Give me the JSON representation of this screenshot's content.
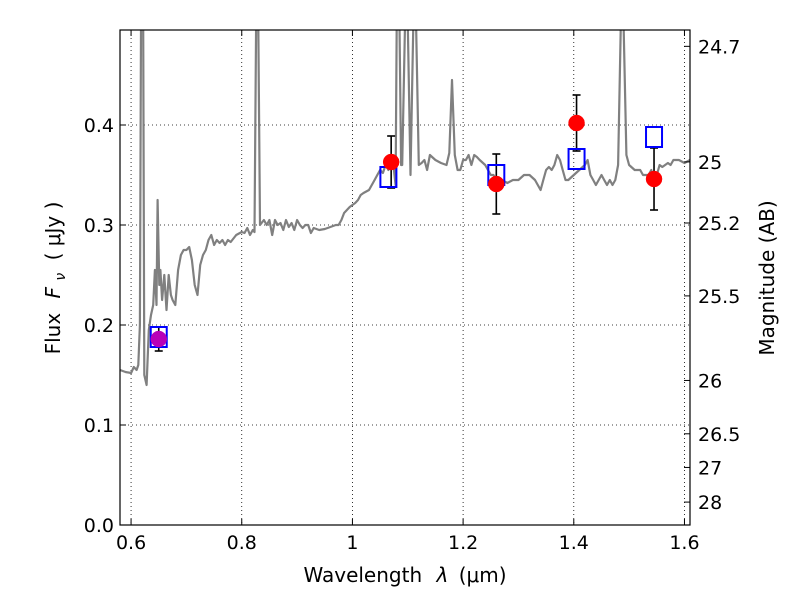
{
  "chart_data": {
    "type": "line",
    "title": "",
    "xlabel": "Wavelength",
    "xlabel_symbol": "λ",
    "xlabel_unit": "(μm)",
    "ylabel": "Flux",
    "ylabel_symbol": "F",
    "ylabel_subscript": "ν",
    "ylabel_unit": "( μJy )",
    "y2label": "Magnitude (AB)",
    "xlim": [
      0.58,
      1.61
    ],
    "ylim": [
      0.0,
      0.495
    ],
    "grid": true,
    "x_ticks": [
      0.6,
      0.8,
      1.0,
      1.2,
      1.4,
      1.6
    ],
    "x_tick_labels": [
      "0.6",
      "0.8",
      "1",
      "1.2",
      "1.4",
      "1.6"
    ],
    "y_ticks": [
      0.0,
      0.1,
      0.2,
      0.3,
      0.4
    ],
    "y_tick_labels": [
      "0.0",
      "0.1",
      "0.2",
      "0.3",
      "0.4"
    ],
    "mag_ticks": [
      24.7,
      25,
      25.2,
      25.5,
      26,
      26.5,
      27,
      28
    ],
    "mag_tick_labels": [
      "24.7",
      "25",
      "25.2",
      "25.5",
      "26",
      "26.5",
      "27",
      "28"
    ],
    "colors": {
      "model_line": "#808080",
      "model_points": "#0000ff",
      "observed_points": "#ff0000",
      "first_observed_point": "#b800b8",
      "error_bars": "#000000",
      "grid": "#000000"
    },
    "series": [
      {
        "kind": "spectrum",
        "points": [
          [
            0.58,
            0.155
          ],
          [
            0.59,
            0.153
          ],
          [
            0.6,
            0.152
          ],
          [
            0.605,
            0.158
          ],
          [
            0.61,
            0.155
          ],
          [
            0.613,
            0.16
          ],
          [
            0.616,
            0.2
          ],
          [
            0.618,
            0.5
          ],
          [
            0.622,
            0.5
          ],
          [
            0.624,
            0.15
          ],
          [
            0.628,
            0.14
          ],
          [
            0.632,
            0.195
          ],
          [
            0.636,
            0.21
          ],
          [
            0.64,
            0.22
          ],
          [
            0.643,
            0.255
          ],
          [
            0.646,
            0.22
          ],
          [
            0.648,
            0.325
          ],
          [
            0.651,
            0.24
          ],
          [
            0.653,
            0.255
          ],
          [
            0.656,
            0.225
          ],
          [
            0.66,
            0.25
          ],
          [
            0.664,
            0.215
          ],
          [
            0.668,
            0.25
          ],
          [
            0.672,
            0.23
          ],
          [
            0.675,
            0.225
          ],
          [
            0.68,
            0.22
          ],
          [
            0.685,
            0.255
          ],
          [
            0.69,
            0.27
          ],
          [
            0.695,
            0.275
          ],
          [
            0.7,
            0.275
          ],
          [
            0.705,
            0.278
          ],
          [
            0.71,
            0.265
          ],
          [
            0.715,
            0.24
          ],
          [
            0.72,
            0.23
          ],
          [
            0.725,
            0.26
          ],
          [
            0.73,
            0.27
          ],
          [
            0.735,
            0.275
          ],
          [
            0.74,
            0.285
          ],
          [
            0.745,
            0.29
          ],
          [
            0.75,
            0.28
          ],
          [
            0.755,
            0.285
          ],
          [
            0.76,
            0.282
          ],
          [
            0.765,
            0.285
          ],
          [
            0.77,
            0.28
          ],
          [
            0.775,
            0.285
          ],
          [
            0.78,
            0.283
          ],
          [
            0.79,
            0.29
          ],
          [
            0.8,
            0.293
          ],
          [
            0.805,
            0.292
          ],
          [
            0.81,
            0.297
          ],
          [
            0.815,
            0.29
          ],
          [
            0.82,
            0.295
          ],
          [
            0.823,
            0.293
          ],
          [
            0.826,
            0.5
          ],
          [
            0.83,
            0.5
          ],
          [
            0.833,
            0.3
          ],
          [
            0.84,
            0.305
          ],
          [
            0.845,
            0.3
          ],
          [
            0.85,
            0.305
          ],
          [
            0.855,
            0.29
          ],
          [
            0.86,
            0.305
          ],
          [
            0.865,
            0.3
          ],
          [
            0.87,
            0.302
          ],
          [
            0.875,
            0.295
          ],
          [
            0.88,
            0.305
          ],
          [
            0.885,
            0.298
          ],
          [
            0.89,
            0.302
          ],
          [
            0.895,
            0.295
          ],
          [
            0.9,
            0.305
          ],
          [
            0.905,
            0.3
          ],
          [
            0.91,
            0.297
          ],
          [
            0.915,
            0.3
          ],
          [
            0.92,
            0.3
          ],
          [
            0.925,
            0.292
          ],
          [
            0.93,
            0.297
          ],
          [
            0.94,
            0.295
          ],
          [
            0.95,
            0.296
          ],
          [
            0.96,
            0.298
          ],
          [
            0.97,
            0.3
          ],
          [
            0.975,
            0.3
          ],
          [
            0.98,
            0.305
          ],
          [
            0.985,
            0.312
          ],
          [
            0.99,
            0.315
          ],
          [
            0.995,
            0.318
          ],
          [
            1.0,
            0.32
          ],
          [
            1.005,
            0.322
          ],
          [
            1.01,
            0.325
          ],
          [
            1.015,
            0.33
          ],
          [
            1.02,
            0.332
          ],
          [
            1.03,
            0.335
          ],
          [
            1.04,
            0.345
          ],
          [
            1.045,
            0.35
          ],
          [
            1.05,
            0.355
          ],
          [
            1.055,
            0.352
          ],
          [
            1.06,
            0.36
          ],
          [
            1.065,
            0.355
          ],
          [
            1.07,
            0.365
          ],
          [
            1.075,
            0.355
          ],
          [
            1.078,
            0.34
          ],
          [
            1.08,
            0.5
          ],
          [
            1.085,
            0.5
          ],
          [
            1.088,
            0.36
          ],
          [
            1.09,
            0.36
          ],
          [
            1.095,
            0.5
          ],
          [
            1.1,
            0.5
          ],
          [
            1.105,
            0.35
          ],
          [
            1.11,
            0.5
          ],
          [
            1.115,
            0.5
          ],
          [
            1.12,
            0.36
          ],
          [
            1.125,
            0.362
          ],
          [
            1.13,
            0.365
          ],
          [
            1.135,
            0.355
          ],
          [
            1.14,
            0.37
          ],
          [
            1.15,
            0.365
          ],
          [
            1.16,
            0.362
          ],
          [
            1.17,
            0.36
          ],
          [
            1.175,
            0.372
          ],
          [
            1.18,
            0.445
          ],
          [
            1.185,
            0.37
          ],
          [
            1.19,
            0.355
          ],
          [
            1.195,
            0.355
          ],
          [
            1.2,
            0.365
          ],
          [
            1.205,
            0.365
          ],
          [
            1.21,
            0.37
          ],
          [
            1.215,
            0.36
          ],
          [
            1.22,
            0.37
          ],
          [
            1.225,
            0.368
          ],
          [
            1.23,
            0.365
          ],
          [
            1.24,
            0.36
          ],
          [
            1.245,
            0.355
          ],
          [
            1.25,
            0.35
          ],
          [
            1.255,
            0.35
          ],
          [
            1.26,
            0.345
          ],
          [
            1.265,
            0.34
          ],
          [
            1.27,
            0.345
          ],
          [
            1.28,
            0.342
          ],
          [
            1.29,
            0.345
          ],
          [
            1.3,
            0.345
          ],
          [
            1.31,
            0.35
          ],
          [
            1.32,
            0.35
          ],
          [
            1.33,
            0.345
          ],
          [
            1.335,
            0.34
          ],
          [
            1.34,
            0.335
          ],
          [
            1.345,
            0.345
          ],
          [
            1.35,
            0.355
          ],
          [
            1.355,
            0.358
          ],
          [
            1.36,
            0.355
          ],
          [
            1.365,
            0.36
          ],
          [
            1.37,
            0.37
          ],
          [
            1.375,
            0.365
          ],
          [
            1.38,
            0.355
          ],
          [
            1.385,
            0.345
          ],
          [
            1.39,
            0.345
          ],
          [
            1.4,
            0.35
          ],
          [
            1.41,
            0.355
          ],
          [
            1.42,
            0.36
          ],
          [
            1.425,
            0.365
          ],
          [
            1.43,
            0.35
          ],
          [
            1.435,
            0.345
          ],
          [
            1.44,
            0.34
          ],
          [
            1.445,
            0.345
          ],
          [
            1.45,
            0.35
          ],
          [
            1.455,
            0.345
          ],
          [
            1.46,
            0.34
          ],
          [
            1.465,
            0.345
          ],
          [
            1.47,
            0.34
          ],
          [
            1.475,
            0.345
          ],
          [
            1.48,
            0.36
          ],
          [
            1.485,
            0.5
          ],
          [
            1.49,
            0.5
          ],
          [
            1.495,
            0.37
          ],
          [
            1.5,
            0.36
          ],
          [
            1.51,
            0.355
          ],
          [
            1.52,
            0.355
          ],
          [
            1.525,
            0.35
          ],
          [
            1.53,
            0.35
          ],
          [
            1.535,
            0.35
          ],
          [
            1.54,
            0.355
          ],
          [
            1.545,
            0.345
          ],
          [
            1.55,
            0.35
          ],
          [
            1.555,
            0.36
          ],
          [
            1.56,
            0.358
          ],
          [
            1.565,
            0.36
          ],
          [
            1.57,
            0.362
          ],
          [
            1.575,
            0.36
          ],
          [
            1.58,
            0.365
          ],
          [
            1.59,
            0.365
          ],
          [
            1.6,
            0.362
          ],
          [
            1.61,
            0.365
          ]
        ]
      },
      {
        "kind": "model_photometry",
        "marker": "open-square",
        "x": [
          0.65,
          1.065,
          1.26,
          1.405,
          1.545
        ],
        "y": [
          0.188,
          0.348,
          0.35,
          0.366,
          0.388
        ]
      },
      {
        "kind": "observed_photometry",
        "marker": "filled-circle",
        "x": [
          0.65,
          1.07,
          1.26,
          1.405,
          1.545
        ],
        "y": [
          0.186,
          0.363,
          0.341,
          0.402,
          0.346
        ],
        "yerr": [
          0.012,
          0.026,
          0.03,
          0.028,
          0.031
        ]
      }
    ]
  }
}
